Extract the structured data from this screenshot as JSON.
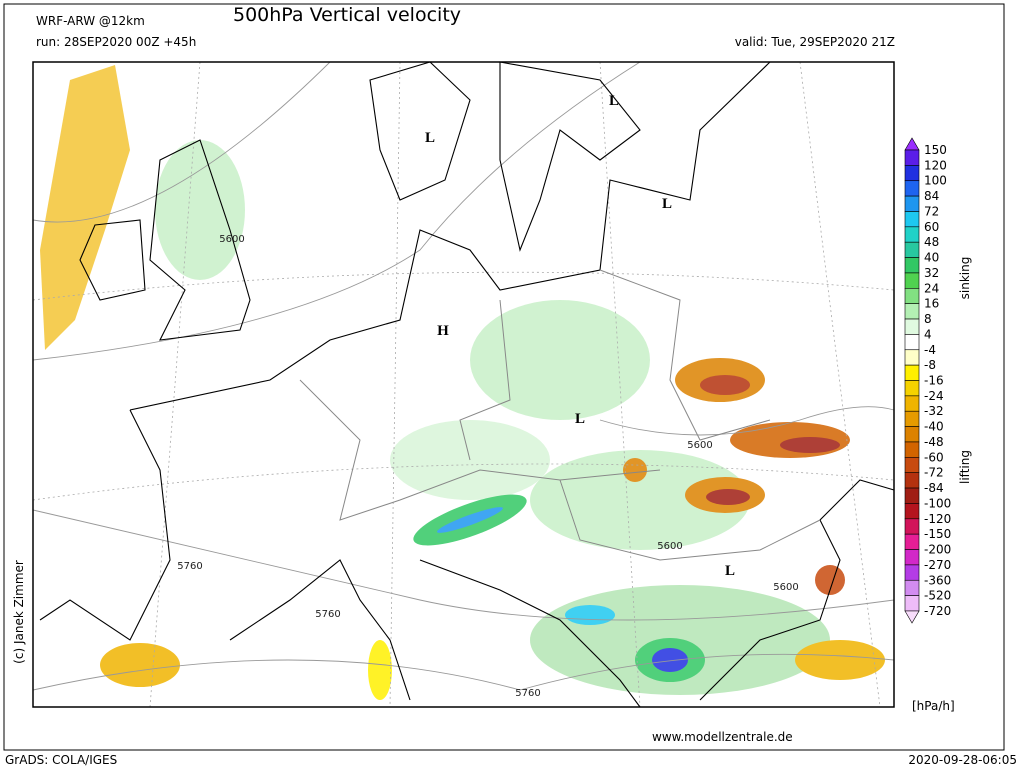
{
  "header": {
    "model": "WRF-ARW @12km",
    "title": "500hPa Vertical velocity",
    "run": "run: 28SEP2020 00Z +45h",
    "valid": "valid: Tue, 29SEP2020 21Z"
  },
  "map": {
    "pressure_centers": [
      "L",
      "L",
      "L",
      "H",
      "L",
      "L"
    ],
    "contour_labels": [
      "5600",
      "5600",
      "5600",
      "5600",
      "5760",
      "5760",
      "5760"
    ],
    "copyright": "(c) Janek Zimmer"
  },
  "colorbar": {
    "levels": [
      "150",
      "120",
      "100",
      "84",
      "72",
      "60",
      "48",
      "40",
      "32",
      "24",
      "16",
      "8",
      "4",
      "-4",
      "-8",
      "-16",
      "-24",
      "-32",
      "-40",
      "-48",
      "-60",
      "-72",
      "-84",
      "-100",
      "-120",
      "-150",
      "-200",
      "-270",
      "-360",
      "-520",
      "-720"
    ],
    "colors": [
      "#9b30ff",
      "#5a1ee8",
      "#2030e0",
      "#1e64f0",
      "#1e96f0",
      "#1ec8f0",
      "#20d2c8",
      "#28c8a0",
      "#32c864",
      "#50d250",
      "#82e082",
      "#b4f0b4",
      "#e0fae0",
      "#ffffff",
      "#ffffc8",
      "#fff000",
      "#f5d200",
      "#f0b400",
      "#e69b00",
      "#dc8200",
      "#d26400",
      "#c84b0f",
      "#b4320f",
      "#a01e14",
      "#b4141e",
      "#d2145a",
      "#e61e96",
      "#d228c8",
      "#b43ce6",
      "#d28cf0",
      "#eebcf8",
      "#f8dcfb"
    ],
    "upper_label": "sinking",
    "lower_label": "lifting",
    "unit": "[hPa/h]"
  },
  "footer": {
    "url": "www.modellzentrale.de",
    "software": "GrADS: COLA/IGES",
    "timestamp": "2020-09-28-06:05"
  }
}
